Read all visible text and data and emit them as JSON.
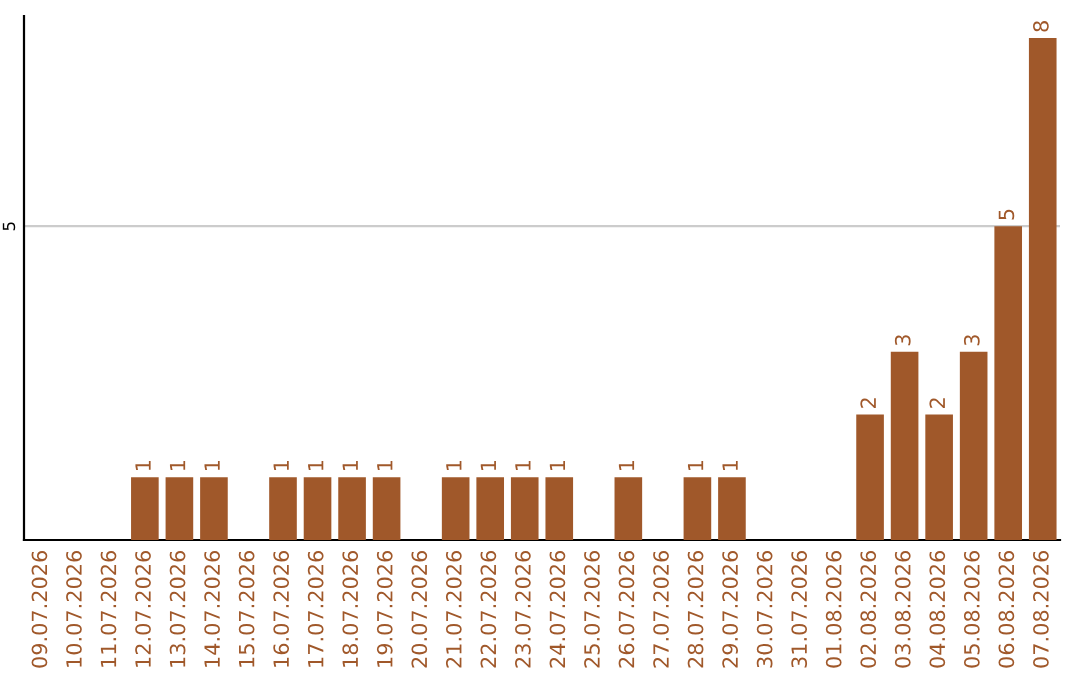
{
  "chart_data": {
    "type": "bar",
    "categories": [
      "09.07.2026",
      "10.07.2026",
      "11.07.2026",
      "12.07.2026",
      "13.07.2026",
      "14.07.2026",
      "15.07.2026",
      "16.07.2026",
      "17.07.2026",
      "18.07.2026",
      "19.07.2026",
      "20.07.2026",
      "21.07.2026",
      "22.07.2026",
      "23.07.2026",
      "24.07.2026",
      "25.07.2026",
      "26.07.2026",
      "27.07.2026",
      "28.07.2026",
      "29.07.2026",
      "30.07.2026",
      "31.07.2026",
      "01.08.2026",
      "02.08.2026",
      "03.08.2026",
      "04.08.2026",
      "05.08.2026",
      "06.08.2026",
      "07.08.2026"
    ],
    "values": [
      0,
      0,
      0,
      1,
      1,
      1,
      0,
      1,
      1,
      1,
      1,
      0,
      1,
      1,
      1,
      1,
      0,
      1,
      0,
      1,
      1,
      0,
      0,
      0,
      2,
      3,
      2,
      3,
      5,
      8
    ],
    "value_labels": [
      null,
      null,
      null,
      "1",
      "1",
      "1",
      null,
      "1",
      "1",
      "1",
      "1",
      null,
      "1",
      "1",
      "1",
      "1",
      null,
      "1",
      null,
      "1",
      "1",
      null,
      null,
      null,
      "2",
      "3",
      "2",
      "3",
      "5",
      "8"
    ],
    "color": "#a0582a",
    "ylim": [
      0,
      8.35
    ],
    "yticks": [
      5
    ],
    "grid": "y"
  }
}
